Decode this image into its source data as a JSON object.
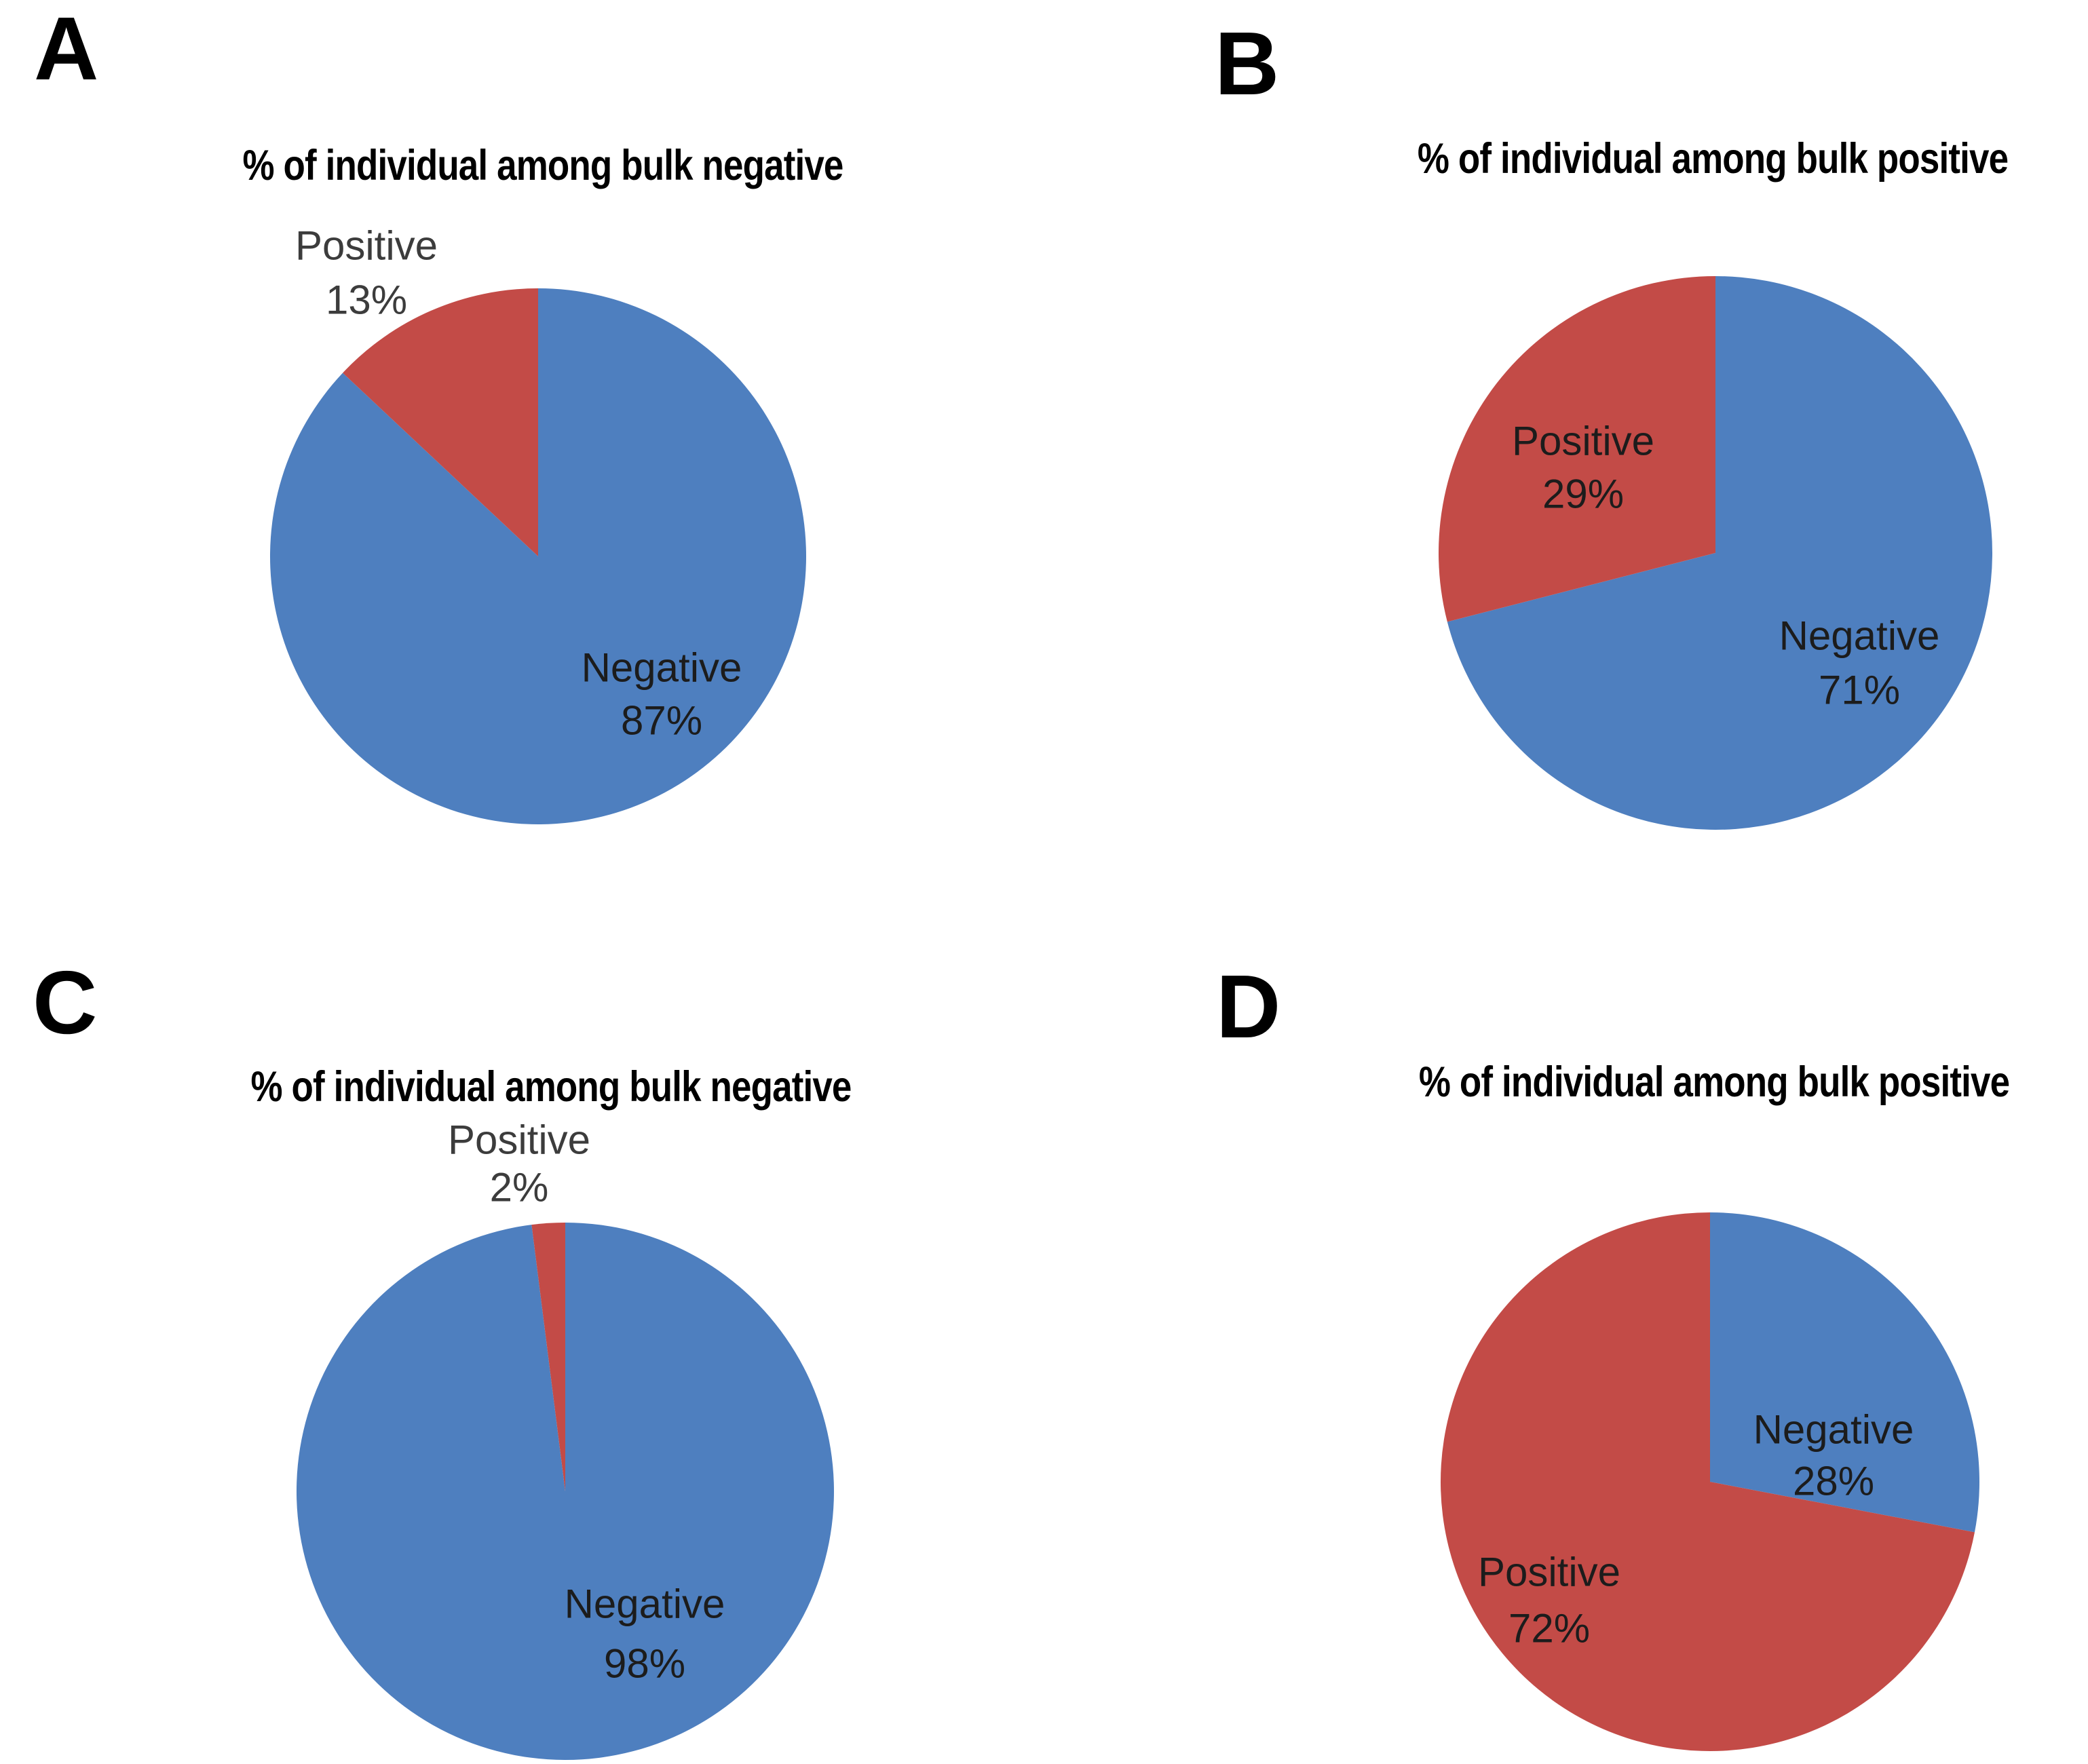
{
  "figure": {
    "background_color": "#ffffff",
    "series_colors": {
      "negative": "#4e7fbf",
      "positive": "#c34b47"
    },
    "label_text_color": "#1c1c1c"
  },
  "chart_data": [
    {
      "type": "pie",
      "panel_letter": "A",
      "title": "% of individual among bulk negative",
      "legend": "none",
      "start_angle_deg_clockwise_from_top": 0,
      "labels": [
        "Negative",
        "Positive"
      ],
      "values": [
        87,
        13
      ],
      "slices": [
        {
          "name": "Negative",
          "value": 87,
          "pct_label": "87%",
          "color": "#4e7fbf",
          "label_placement": "inside"
        },
        {
          "name": "Positive",
          "value": 13,
          "pct_label": "13%",
          "color": "#c34b47",
          "label_placement": "outside"
        }
      ]
    },
    {
      "type": "pie",
      "panel_letter": "B",
      "title": "% of individual among bulk positive",
      "legend": "none",
      "start_angle_deg_clockwise_from_top": 0,
      "labels": [
        "Negative",
        "Positive"
      ],
      "values": [
        71,
        29
      ],
      "slices": [
        {
          "name": "Negative",
          "value": 71,
          "pct_label": "71%",
          "color": "#4e7fbf",
          "label_placement": "inside"
        },
        {
          "name": "Positive",
          "value": 29,
          "pct_label": "29%",
          "color": "#c34b47",
          "label_placement": "inside"
        }
      ]
    },
    {
      "type": "pie",
      "panel_letter": "C",
      "title": "% of individual among bulk negative",
      "legend": "none",
      "start_angle_deg_clockwise_from_top": 0,
      "labels": [
        "Negative",
        "Positive"
      ],
      "values": [
        98,
        2
      ],
      "slices": [
        {
          "name": "Negative",
          "value": 98,
          "pct_label": "98%",
          "color": "#4e7fbf",
          "label_placement": "inside"
        },
        {
          "name": "Positive",
          "value": 2,
          "pct_label": "2%",
          "color": "#c34b47",
          "label_placement": "outside"
        }
      ]
    },
    {
      "type": "pie",
      "panel_letter": "D",
      "title": "% of individual among bulk positive",
      "legend": "none",
      "start_angle_deg_clockwise_from_top": 0,
      "labels": [
        "Negative",
        "Positive"
      ],
      "values": [
        28,
        72
      ],
      "slices": [
        {
          "name": "Negative",
          "value": 28,
          "pct_label": "28%",
          "color": "#4e7fbf",
          "label_placement": "inside"
        },
        {
          "name": "Positive",
          "value": 72,
          "pct_label": "72%",
          "color": "#c34b47",
          "label_placement": "inside"
        }
      ]
    }
  ]
}
